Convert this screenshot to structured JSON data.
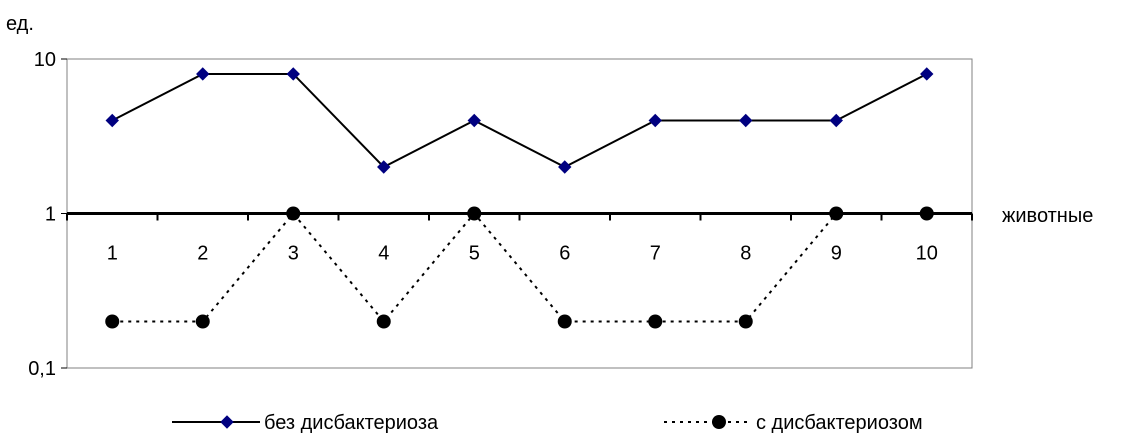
{
  "chart_data": {
    "type": "line",
    "title": "",
    "ylabel": "ед.",
    "xlabel": "животные",
    "yscale": "log",
    "ylim": [
      0.1,
      10
    ],
    "xlim": [
      0.5,
      10.5
    ],
    "ytick_values": [
      0.1,
      1,
      10
    ],
    "ytick_labels": [
      "0,1",
      "1",
      "10"
    ],
    "x": [
      1,
      2,
      3,
      4,
      5,
      6,
      7,
      8,
      9,
      10
    ],
    "xtick_labels": [
      "1",
      "2",
      "3",
      "4",
      "5",
      "6",
      "7",
      "8",
      "9",
      "10"
    ],
    "baseline": 1,
    "grid": false,
    "legend_position": "bottom",
    "series": [
      {
        "name": "без дисбактериоза",
        "values": [
          4,
          8,
          8,
          2,
          4,
          2,
          4,
          4,
          4,
          8
        ],
        "color": "#000080",
        "line_color": "#000000",
        "line_style": "solid",
        "marker": "diamond"
      },
      {
        "name": "с дисбактериозом",
        "values": [
          0.2,
          0.2,
          1,
          0.2,
          1,
          0.2,
          0.2,
          0.2,
          1,
          1
        ],
        "color": "#000000",
        "line_color": "#000000",
        "line_style": "dotted",
        "marker": "circle"
      }
    ]
  }
}
